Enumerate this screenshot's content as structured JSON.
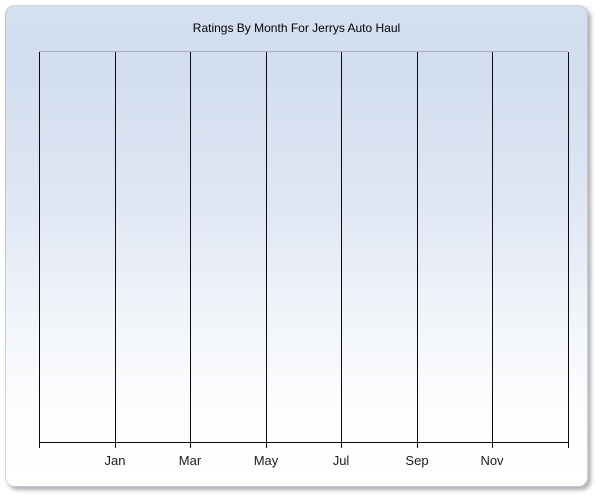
{
  "page": {
    "background_color": "#ffffff"
  },
  "panel": {
    "background_top_color": "#d4dff0",
    "background_bottom_color": "#ffffff",
    "shadow_color": "#bdbdbd",
    "plot_top_border_color": "#a9afbb",
    "gridline_color": "#000000",
    "axis_color": "#000000"
  },
  "chart": {
    "title": "Ratings By Month For Jerrys Auto Haul"
  },
  "chart_data": {
    "type": "line",
    "title": "Ratings By Month For Jerrys Auto Haul",
    "xlabel": "",
    "ylabel": "",
    "x_tick_labels": [
      "Jan",
      "Mar",
      "May",
      "Jul",
      "Sep",
      "Nov"
    ],
    "y_tick_labels": [],
    "series": [],
    "grid": "vertical gridlines only; outermost gridlines form left and right plot borders; each gridline has a small tick extending below the x-axis",
    "legend_position": "none",
    "notes": "plot area is empty - no data points, bars, lines, or y-axis tick values are rendered"
  }
}
